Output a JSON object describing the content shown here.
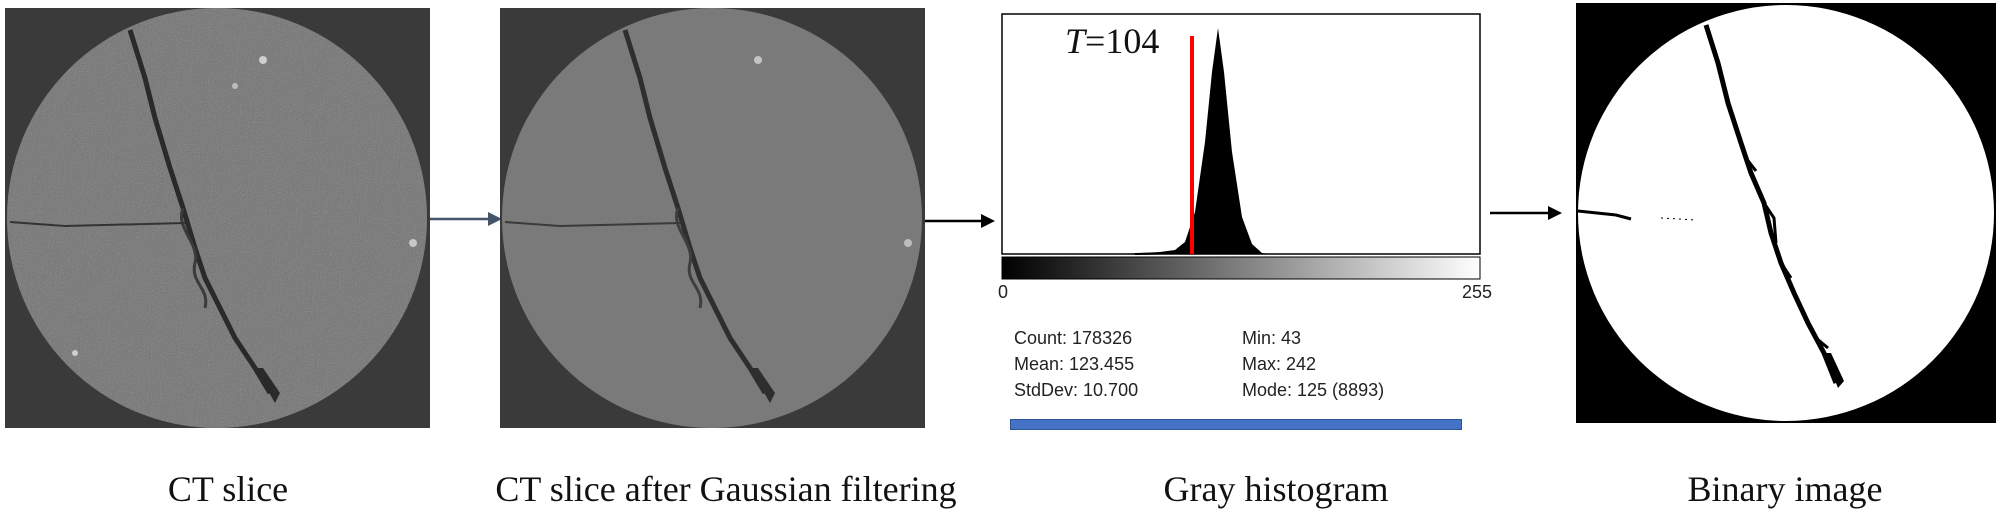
{
  "panels": {
    "ct_slice": {
      "caption": "CT slice"
    },
    "filtered": {
      "caption": "CT slice after Gaussian filtering"
    },
    "histogram": {
      "caption": "Gray histogram",
      "threshold_symbol": "T",
      "threshold_value": "=104",
      "axis_min": "0",
      "axis_max": "255",
      "stats": {
        "count": "Count: 178326",
        "mean": "Mean: 123.455",
        "stddev": "StdDev: 10.700",
        "min": "Min: 43",
        "max": "Max: 242",
        "mode": "Mode: 125 (8893)"
      }
    },
    "binary": {
      "caption": "Binary image"
    }
  },
  "colors": {
    "threshold_line": "#ff0000",
    "progress_bar": "#4472c4",
    "arrow_blue": "#44546a",
    "arrow_black": "#000000",
    "ct_background": "#3a3a3a",
    "ct_disk": "#7c7c7c"
  }
}
